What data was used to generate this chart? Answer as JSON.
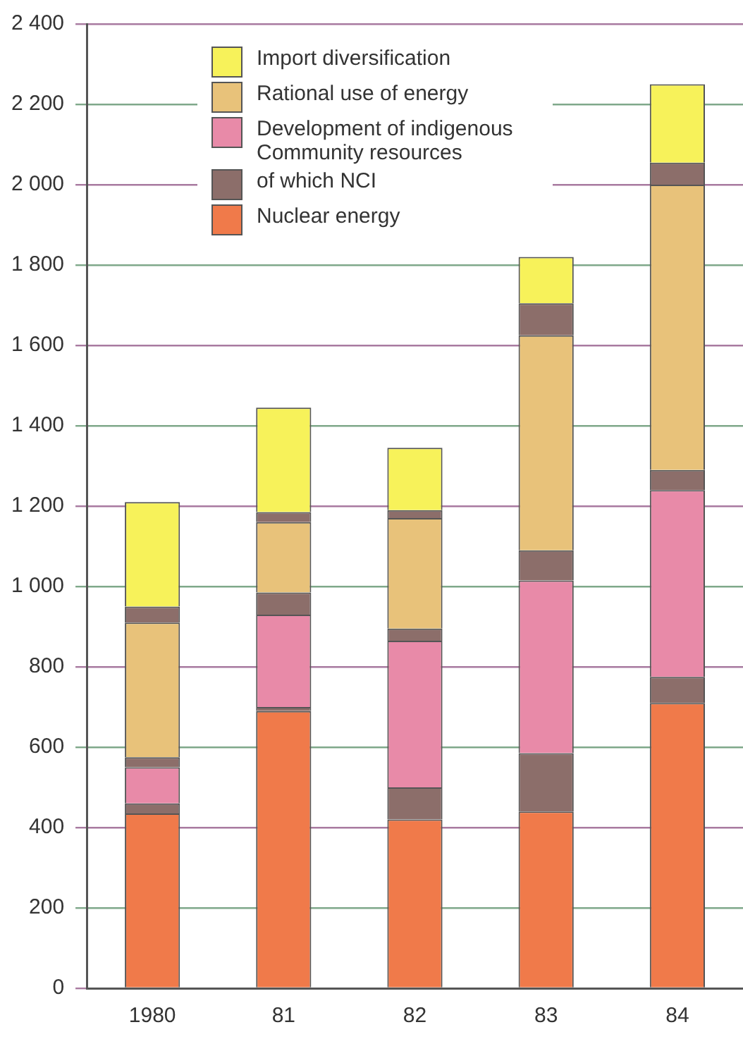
{
  "chart_data": {
    "type": "bar",
    "stacked": true,
    "categories": [
      "1980",
      "81",
      "82",
      "83",
      "84"
    ],
    "series": [
      {
        "name": "Nuclear energy",
        "color": "#f07a4a",
        "values": [
          435,
          690,
          420,
          440,
          710
        ]
      },
      {
        "name": "of which NCI",
        "color": "#8c6e6a",
        "values": [
          25,
          10,
          80,
          145,
          65
        ]
      },
      {
        "name": "Development of indigenous Community resources",
        "color": "#e88aa8",
        "values": [
          90,
          230,
          365,
          430,
          465
        ]
      },
      {
        "color": "#8c6e6a",
        "values": [
          25,
          55,
          30,
          75,
          50
        ]
      },
      {
        "name": "Rational use of energy",
        "color": "#e8c27a",
        "values": [
          335,
          175,
          275,
          535,
          710
        ]
      },
      {
        "color": "#8c6e6a",
        "values": [
          40,
          25,
          20,
          80,
          55
        ]
      },
      {
        "name": "Import diversification",
        "color": "#f7f25a",
        "values": [
          260,
          260,
          155,
          115,
          195
        ]
      }
    ],
    "ylim": [
      0,
      2400
    ],
    "yticks": [
      0,
      200,
      400,
      600,
      800,
      {
        "value": 1000,
        "label": "1 000"
      },
      {
        "value": 1200,
        "label": "1 200"
      },
      {
        "value": 1400,
        "label": "1 400"
      },
      {
        "value": 1600,
        "label": "1 600"
      },
      {
        "value": 1800,
        "label": "1 800"
      },
      {
        "value": 2000,
        "label": "2 000"
      },
      {
        "value": 2200,
        "label": "2 200"
      },
      {
        "value": 2400,
        "label": "2 400"
      }
    ],
    "grid": "y",
    "legend": "top left"
  }
}
